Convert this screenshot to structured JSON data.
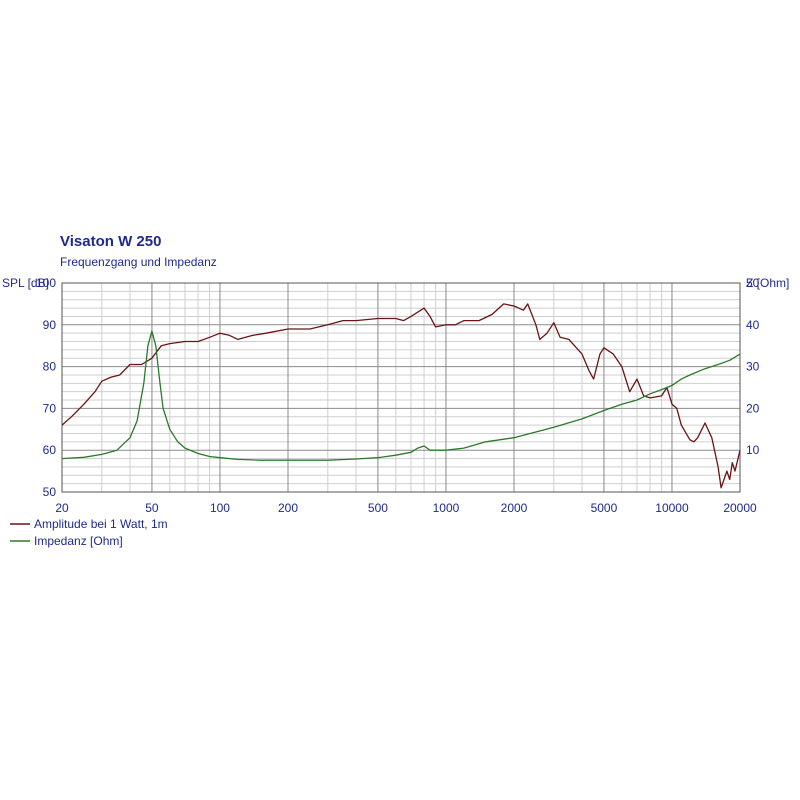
{
  "chart_data": {
    "type": "line",
    "title": "Visaton W 250",
    "subtitle": "Frequenzgang und Impedanz",
    "ylabel": "SPL [dB]",
    "y2label": "Z [Ohm]",
    "x_scale": "log",
    "xlim": [
      20,
      20000
    ],
    "ylim": [
      50,
      100
    ],
    "y2lim": [
      0,
      50
    ],
    "grid": true,
    "legend_position": "bottom-left",
    "x_ticks": [
      20,
      50,
      100,
      200,
      500,
      1000,
      2000,
      5000,
      10000,
      20000
    ],
    "x_tick_labels": [
      "20",
      "50",
      "100",
      "200",
      "500",
      "1000",
      "2000",
      "5000",
      "10000",
      "20000"
    ],
    "y_ticks": [
      50,
      60,
      70,
      80,
      90,
      100
    ],
    "y_tick_labels": [
      "50",
      "60",
      "70",
      "80",
      "90",
      "100"
    ],
    "y2_ticks": [
      10,
      20,
      30,
      40,
      50
    ],
    "y2_tick_labels": [
      "10",
      "20",
      "30",
      "40",
      "50"
    ],
    "series": [
      {
        "name": "Amplitude bei 1 Watt, 1m",
        "axis": "left",
        "color": "#6b1414",
        "points": [
          [
            20,
            66
          ],
          [
            22,
            68
          ],
          [
            25,
            71
          ],
          [
            28,
            74
          ],
          [
            30,
            76.5
          ],
          [
            33,
            77.5
          ],
          [
            36,
            78
          ],
          [
            40,
            80.5
          ],
          [
            45,
            80.5
          ],
          [
            50,
            82
          ],
          [
            55,
            85
          ],
          [
            60,
            85.5
          ],
          [
            70,
            86
          ],
          [
            80,
            86
          ],
          [
            90,
            87
          ],
          [
            100,
            88
          ],
          [
            110,
            87.5
          ],
          [
            120,
            86.5
          ],
          [
            140,
            87.5
          ],
          [
            160,
            88
          ],
          [
            200,
            89
          ],
          [
            250,
            89
          ],
          [
            300,
            90
          ],
          [
            350,
            91
          ],
          [
            400,
            91
          ],
          [
            500,
            91.5
          ],
          [
            600,
            91.5
          ],
          [
            650,
            91
          ],
          [
            700,
            92
          ],
          [
            800,
            94
          ],
          [
            850,
            92
          ],
          [
            900,
            89.5
          ],
          [
            1000,
            90
          ],
          [
            1100,
            90
          ],
          [
            1200,
            91
          ],
          [
            1400,
            91
          ],
          [
            1600,
            92.5
          ],
          [
            1800,
            95
          ],
          [
            2000,
            94.5
          ],
          [
            2200,
            93.5
          ],
          [
            2300,
            95
          ],
          [
            2500,
            90
          ],
          [
            2600,
            86.5
          ],
          [
            2800,
            88
          ],
          [
            3000,
            90.5
          ],
          [
            3200,
            87
          ],
          [
            3500,
            86.5
          ],
          [
            4000,
            83
          ],
          [
            4300,
            79
          ],
          [
            4500,
            77
          ],
          [
            4800,
            83
          ],
          [
            5000,
            84.5
          ],
          [
            5500,
            83
          ],
          [
            6000,
            80
          ],
          [
            6500,
            74
          ],
          [
            7000,
            77
          ],
          [
            7500,
            73
          ],
          [
            8000,
            72.5
          ],
          [
            9000,
            73
          ],
          [
            9500,
            75
          ],
          [
            10000,
            71
          ],
          [
            10500,
            70
          ],
          [
            11000,
            66
          ],
          [
            12000,
            62.5
          ],
          [
            12500,
            62
          ],
          [
            13000,
            63
          ],
          [
            14000,
            66.5
          ],
          [
            15000,
            63
          ],
          [
            16000,
            56
          ],
          [
            16500,
            51
          ],
          [
            17000,
            53
          ],
          [
            17500,
            55
          ],
          [
            18000,
            53
          ],
          [
            18500,
            57
          ],
          [
            19000,
            55
          ],
          [
            20000,
            60
          ]
        ]
      },
      {
        "name": "Impedanz [Ohm]",
        "axis": "right",
        "color": "#2b7a2b",
        "points": [
          [
            20,
            8
          ],
          [
            25,
            8.3
          ],
          [
            30,
            9
          ],
          [
            35,
            10
          ],
          [
            40,
            13
          ],
          [
            43,
            17
          ],
          [
            46,
            26
          ],
          [
            48,
            35
          ],
          [
            50,
            38.5
          ],
          [
            52,
            35
          ],
          [
            54,
            27
          ],
          [
            56,
            20
          ],
          [
            60,
            15
          ],
          [
            65,
            12
          ],
          [
            70,
            10.5
          ],
          [
            80,
            9.2
          ],
          [
            90,
            8.5
          ],
          [
            100,
            8.2
          ],
          [
            120,
            7.8
          ],
          [
            150,
            7.6
          ],
          [
            200,
            7.6
          ],
          [
            300,
            7.6
          ],
          [
            400,
            7.9
          ],
          [
            500,
            8.2
          ],
          [
            600,
            8.8
          ],
          [
            700,
            9.5
          ],
          [
            750,
            10.5
          ],
          [
            800,
            11
          ],
          [
            850,
            10
          ],
          [
            900,
            10
          ],
          [
            1000,
            10
          ],
          [
            1200,
            10.5
          ],
          [
            1500,
            12
          ],
          [
            2000,
            13
          ],
          [
            3000,
            15.5
          ],
          [
            4000,
            17.5
          ],
          [
            5000,
            19.5
          ],
          [
            6000,
            21
          ],
          [
            7000,
            22
          ],
          [
            8000,
            23.5
          ],
          [
            9000,
            24.5
          ],
          [
            10000,
            25.5
          ],
          [
            11000,
            27
          ],
          [
            12000,
            28
          ],
          [
            14000,
            29.5
          ],
          [
            16000,
            30.5
          ],
          [
            18000,
            31.5
          ],
          [
            20000,
            33
          ]
        ]
      }
    ]
  }
}
